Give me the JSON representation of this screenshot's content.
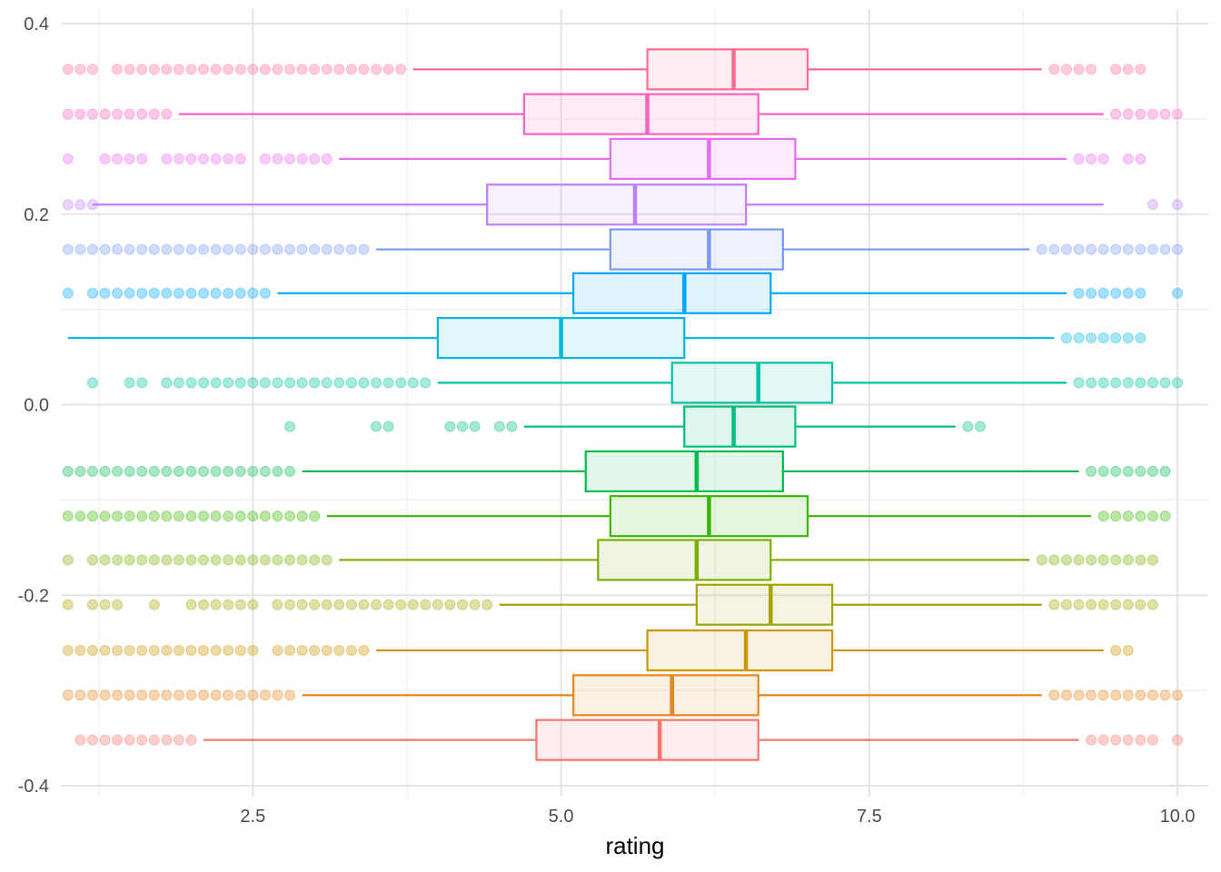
{
  "chart_data": {
    "type": "boxplot",
    "xlabel": "rating",
    "ylabel": "",
    "xlim": [
      0.95,
      10.25
    ],
    "ylim": [
      -0.4,
      0.4
    ],
    "grid": true,
    "legend": "none",
    "x_ticks": [
      {
        "value": 2.5,
        "label": "2.5"
      },
      {
        "value": 5.0,
        "label": "5.0"
      },
      {
        "value": 7.5,
        "label": "7.5"
      },
      {
        "value": 10.0,
        "label": "10.0"
      }
    ],
    "y_ticks": [
      {
        "value": 0.4,
        "label": "0.4"
      },
      {
        "value": 0.2,
        "label": "0.2"
      },
      {
        "value": 0.0,
        "label": "0.0"
      },
      {
        "value": -0.2,
        "label": "-0.2"
      },
      {
        "value": -0.4,
        "label": "-0.4"
      }
    ],
    "series": [
      {
        "color": "#F8766D",
        "y": -0.352,
        "whisker_low": 2.1,
        "q1": 4.8,
        "median": 5.8,
        "q3": 6.6,
        "whisker_high": 9.2,
        "outliers_low": [
          1.1,
          1.2,
          1.3,
          1.4,
          1.5,
          1.6,
          1.7,
          1.8,
          1.9,
          2.0
        ],
        "outliers_high": [
          9.3,
          9.4,
          9.5,
          9.6,
          9.7,
          9.8,
          10.0
        ]
      },
      {
        "color": "#E7861B",
        "y": -0.305,
        "whisker_low": 2.9,
        "q1": 5.1,
        "median": 5.9,
        "q3": 6.6,
        "whisker_high": 8.9,
        "outliers_low": [
          1.0,
          1.1,
          1.2,
          1.3,
          1.4,
          1.5,
          1.6,
          1.7,
          1.8,
          1.9,
          2.0,
          2.1,
          2.2,
          2.3,
          2.4,
          2.5,
          2.6,
          2.7,
          2.8
        ],
        "outliers_high": [
          9.0,
          9.1,
          9.2,
          9.3,
          9.4,
          9.5,
          9.6,
          9.7,
          9.8,
          9.9,
          10.0
        ]
      },
      {
        "color": "#CC9600",
        "y": -0.258,
        "whisker_low": 3.5,
        "q1": 5.7,
        "median": 6.5,
        "q3": 7.2,
        "whisker_high": 9.4,
        "outliers_low": [
          1.0,
          1.1,
          1.2,
          1.3,
          1.4,
          1.5,
          1.6,
          1.7,
          1.8,
          1.9,
          2.0,
          2.1,
          2.2,
          2.3,
          2.4,
          2.5,
          2.7,
          2.8,
          2.9,
          3.0,
          3.1,
          3.2,
          3.3,
          3.4
        ],
        "outliers_high": [
          9.5,
          9.6
        ]
      },
      {
        "color": "#A3A500",
        "y": -0.21,
        "whisker_low": 4.5,
        "q1": 6.1,
        "median": 6.7,
        "q3": 7.2,
        "whisker_high": 8.9,
        "outliers_low": [
          1.0,
          1.2,
          1.3,
          1.4,
          1.7,
          2.0,
          2.1,
          2.2,
          2.3,
          2.4,
          2.5,
          2.7,
          2.8,
          2.9,
          3.0,
          3.1,
          3.2,
          3.3,
          3.4,
          3.5,
          3.6,
          3.7,
          3.8,
          3.9,
          4.0,
          4.1,
          4.2,
          4.3,
          4.4
        ],
        "outliers_high": [
          9.0,
          9.1,
          9.2,
          9.3,
          9.4,
          9.5,
          9.6,
          9.7,
          9.8
        ]
      },
      {
        "color": "#7CAE00",
        "y": -0.163,
        "whisker_low": 3.2,
        "q1": 5.3,
        "median": 6.1,
        "q3": 6.7,
        "whisker_high": 8.8,
        "outliers_low": [
          1.0,
          1.2,
          1.3,
          1.4,
          1.5,
          1.6,
          1.7,
          1.8,
          1.9,
          2.0,
          2.1,
          2.2,
          2.3,
          2.4,
          2.5,
          2.6,
          2.7,
          2.8,
          2.9,
          3.0,
          3.1
        ],
        "outliers_high": [
          8.9,
          9.0,
          9.1,
          9.2,
          9.3,
          9.4,
          9.5,
          9.6,
          9.7,
          9.8
        ]
      },
      {
        "color": "#39B600",
        "y": -0.117,
        "whisker_low": 3.1,
        "q1": 5.4,
        "median": 6.2,
        "q3": 7.0,
        "whisker_high": 9.3,
        "outliers_low": [
          1.0,
          1.1,
          1.2,
          1.3,
          1.4,
          1.5,
          1.6,
          1.7,
          1.8,
          1.9,
          2.0,
          2.1,
          2.2,
          2.3,
          2.4,
          2.5,
          2.6,
          2.7,
          2.8,
          2.9,
          3.0
        ],
        "outliers_high": [
          9.4,
          9.5,
          9.6,
          9.7,
          9.8,
          9.9
        ]
      },
      {
        "color": "#00BB4E",
        "y": -0.07,
        "whisker_low": 2.9,
        "q1": 5.2,
        "median": 6.1,
        "q3": 6.8,
        "whisker_high": 9.2,
        "outliers_low": [
          1.0,
          1.1,
          1.2,
          1.3,
          1.4,
          1.5,
          1.6,
          1.7,
          1.8,
          1.9,
          2.0,
          2.1,
          2.2,
          2.3,
          2.4,
          2.5,
          2.6,
          2.7,
          2.8
        ],
        "outliers_high": [
          9.3,
          9.4,
          9.5,
          9.6,
          9.7,
          9.8,
          9.9
        ]
      },
      {
        "color": "#00BF7D",
        "y": -0.023,
        "whisker_low": 4.7,
        "q1": 6.0,
        "median": 6.4,
        "q3": 6.9,
        "whisker_high": 8.2,
        "outliers_low": [
          2.8,
          3.5,
          3.6,
          4.1,
          4.2,
          4.3,
          4.5,
          4.6
        ],
        "outliers_high": [
          8.3,
          8.4
        ]
      },
      {
        "color": "#00C1A3",
        "y": 0.023,
        "whisker_low": 4.0,
        "q1": 5.9,
        "median": 6.6,
        "q3": 7.2,
        "whisker_high": 9.1,
        "outliers_low": [
          1.2,
          1.5,
          1.6,
          1.8,
          1.9,
          2.0,
          2.1,
          2.2,
          2.3,
          2.4,
          2.5,
          2.6,
          2.7,
          2.8,
          2.9,
          3.0,
          3.1,
          3.2,
          3.3,
          3.4,
          3.5,
          3.6,
          3.7,
          3.8,
          3.9
        ],
        "outliers_high": [
          9.2,
          9.3,
          9.4,
          9.5,
          9.6,
          9.7,
          9.8,
          9.9,
          10.0
        ]
      },
      {
        "color": "#00BADE",
        "y": 0.07,
        "whisker_low": 1.0,
        "q1": 4.0,
        "median": 5.0,
        "q3": 6.0,
        "whisker_high": 9.0,
        "outliers_low": [],
        "outliers_high": [
          9.1,
          9.2,
          9.3,
          9.4,
          9.5,
          9.6,
          9.7
        ]
      },
      {
        "color": "#00A6FF",
        "y": 0.117,
        "whisker_low": 2.7,
        "q1": 5.1,
        "median": 6.0,
        "q3": 6.7,
        "whisker_high": 9.1,
        "outliers_low": [
          1.0,
          1.2,
          1.3,
          1.4,
          1.5,
          1.6,
          1.7,
          1.8,
          1.9,
          2.0,
          2.1,
          2.2,
          2.3,
          2.4,
          2.5,
          2.6
        ],
        "outliers_high": [
          9.2,
          9.3,
          9.4,
          9.5,
          9.6,
          9.7,
          10.0
        ]
      },
      {
        "color": "#7997FF",
        "y": 0.163,
        "whisker_low": 3.5,
        "q1": 5.4,
        "median": 6.2,
        "q3": 6.8,
        "whisker_high": 8.8,
        "outliers_low": [
          1.0,
          1.1,
          1.2,
          1.3,
          1.4,
          1.5,
          1.6,
          1.7,
          1.8,
          1.9,
          2.0,
          2.1,
          2.2,
          2.3,
          2.4,
          2.5,
          2.6,
          2.7,
          2.8,
          2.9,
          3.0,
          3.1,
          3.2,
          3.3,
          3.4
        ],
        "outliers_high": [
          8.9,
          9.0,
          9.1,
          9.2,
          9.3,
          9.4,
          9.5,
          9.6,
          9.7,
          9.8,
          9.9,
          10.0
        ]
      },
      {
        "color": "#BF80FF",
        "y": 0.21,
        "whisker_low": 1.2,
        "q1": 4.4,
        "median": 5.6,
        "q3": 6.5,
        "whisker_high": 9.4,
        "outliers_low": [
          1.0,
          1.1,
          1.2
        ],
        "outliers_high": [
          9.8,
          10.0
        ]
      },
      {
        "color": "#E76BF3",
        "y": 0.258,
        "whisker_low": 3.2,
        "q1": 5.4,
        "median": 6.2,
        "q3": 6.9,
        "whisker_high": 9.1,
        "outliers_low": [
          1.0,
          1.3,
          1.4,
          1.5,
          1.6,
          1.8,
          1.9,
          2.0,
          2.1,
          2.2,
          2.3,
          2.4,
          2.6,
          2.7,
          2.8,
          2.9,
          3.0,
          3.1
        ],
        "outliers_high": [
          9.2,
          9.3,
          9.4,
          9.6,
          9.7
        ]
      },
      {
        "color": "#FF62BC",
        "y": 0.305,
        "whisker_low": 1.9,
        "q1": 4.7,
        "median": 5.7,
        "q3": 6.6,
        "whisker_high": 9.4,
        "outliers_low": [
          1.0,
          1.1,
          1.2,
          1.3,
          1.4,
          1.5,
          1.6,
          1.7,
          1.8
        ],
        "outliers_high": [
          9.5,
          9.6,
          9.7,
          9.8,
          9.9,
          10.0
        ]
      },
      {
        "color": "#FF6C91",
        "y": 0.352,
        "whisker_low": 3.8,
        "q1": 5.7,
        "median": 6.4,
        "q3": 7.0,
        "whisker_high": 8.9,
        "outliers_low": [
          1.0,
          1.1,
          1.2,
          1.4,
          1.5,
          1.6,
          1.7,
          1.8,
          1.9,
          2.0,
          2.1,
          2.2,
          2.3,
          2.4,
          2.5,
          2.6,
          2.7,
          2.8,
          2.9,
          3.0,
          3.1,
          3.2,
          3.3,
          3.4,
          3.5,
          3.6,
          3.7
        ],
        "outliers_high": [
          9.0,
          9.1,
          9.2,
          9.3,
          9.5,
          9.6,
          9.7
        ]
      }
    ]
  }
}
